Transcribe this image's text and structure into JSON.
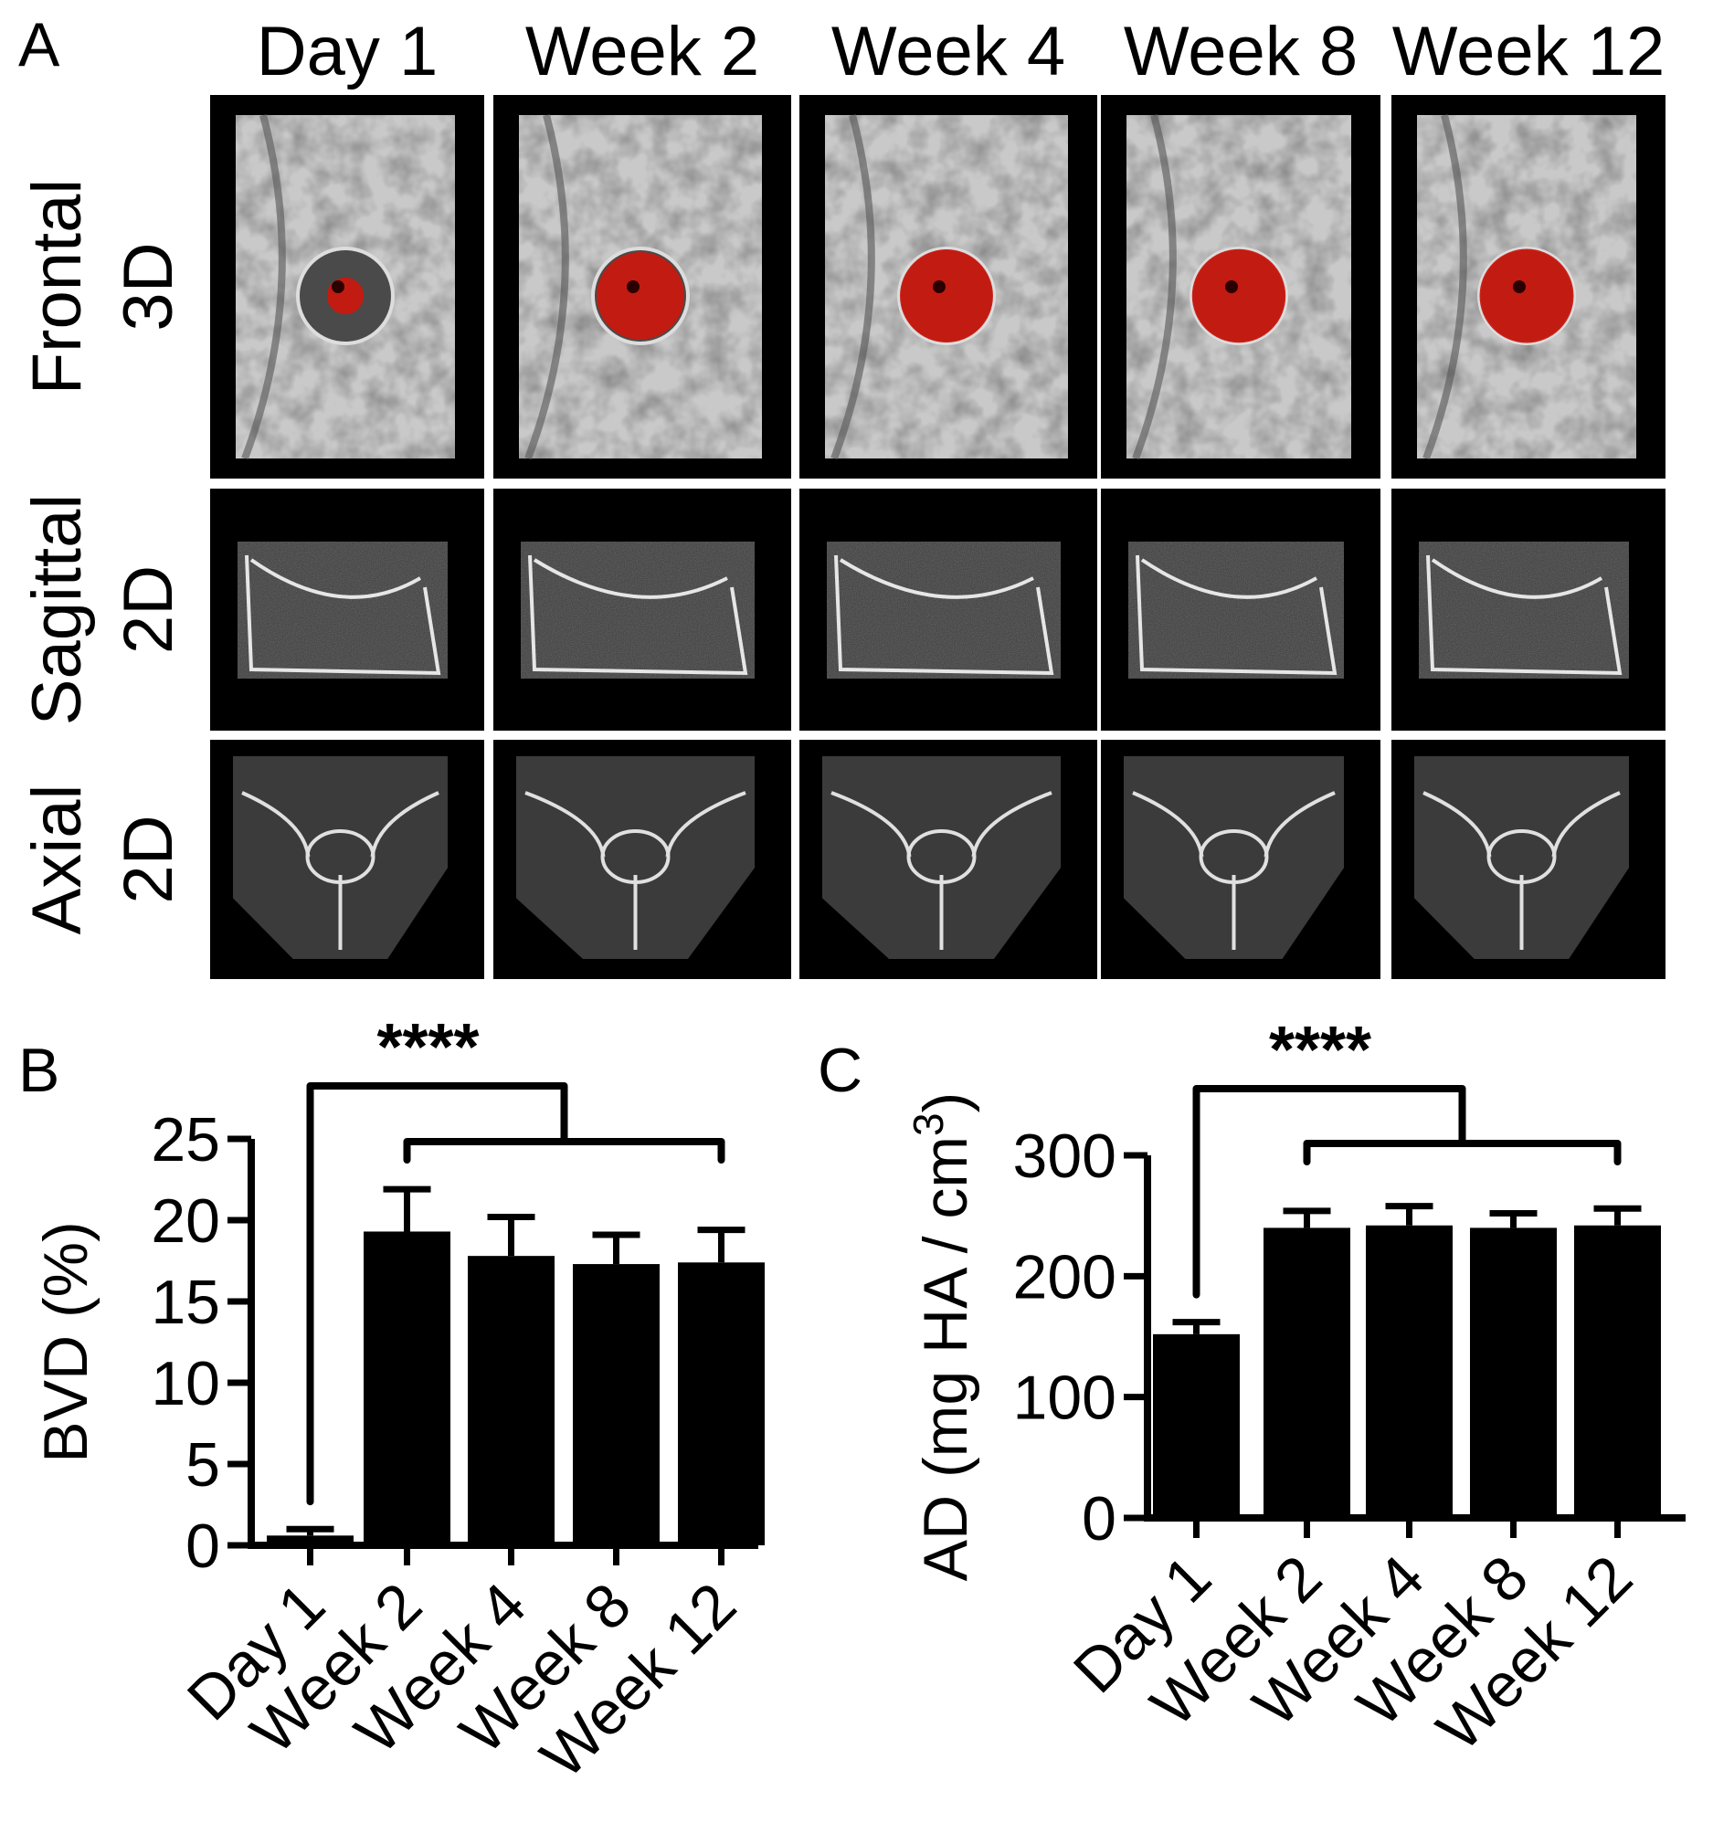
{
  "panel_a": {
    "letter": "A",
    "columns": [
      "Day 1",
      "Week 2",
      "Week 4",
      "Week 8",
      "Week 12"
    ],
    "rows": [
      {
        "view": "Frontal",
        "dim": "3D",
        "kind": "frontal-3d"
      },
      {
        "view": "Sagittal",
        "dim": "2D",
        "kind": "sagittal-2d"
      },
      {
        "view": "Axial",
        "dim": "2D",
        "kind": "axial-2d"
      }
    ],
    "defect_fill_fraction": [
      0.15,
      0.85,
      0.96,
      0.97,
      0.98
    ],
    "colors": {
      "defect": "#c8180e",
      "bone": "#c9c9c9",
      "background": "#000000"
    }
  },
  "chart_data": [
    {
      "type": "bar",
      "panel": "B",
      "categories": [
        "Day 1",
        "Week 2",
        "Week 4",
        "Week 8",
        "Week 12"
      ],
      "values": [
        0.6,
        19.3,
        17.8,
        17.3,
        17.4
      ],
      "errors": [
        0.4,
        2.6,
        2.4,
        1.8,
        2.0
      ],
      "title": "",
      "xlabel": "",
      "ylabel": "BVD (%)",
      "ylim": [
        0,
        25
      ],
      "yticks": [
        "0",
        "5",
        "10",
        "15",
        "20",
        "25"
      ],
      "significance": "****",
      "grid": false,
      "bar_color": "#000000"
    },
    {
      "type": "bar",
      "panel": "C",
      "categories": [
        "Day 1",
        "Week 2",
        "Week 4",
        "Week 8",
        "Week 12"
      ],
      "values": [
        152,
        240,
        242,
        240,
        242
      ],
      "errors": [
        10,
        14,
        16,
        12,
        14
      ],
      "title": "",
      "xlabel": "",
      "ylabel": "AD (mg HA / cm",
      "ylabel_superscript": "3",
      "ylabel_close": ")",
      "ylim": [
        0,
        300
      ],
      "yticks": [
        "0",
        "100",
        "200",
        "300"
      ],
      "significance": "****",
      "grid": false,
      "bar_color": "#000000"
    }
  ]
}
